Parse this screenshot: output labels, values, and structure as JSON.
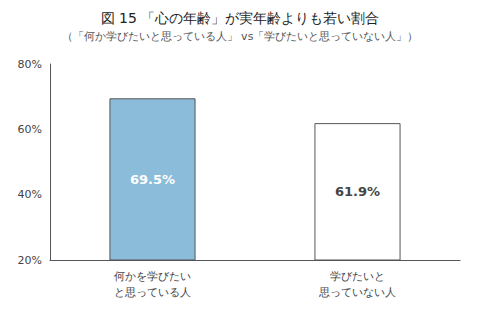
{
  "chart_data": {
    "type": "bar",
    "title": "図 15 「心の年齢」が実年齢よりも若い割合",
    "subtitle": "（「何か学びたいと思っている人」 vs「学びたいと思っていない人」）",
    "categories": [
      "何かを学びたい\nと思っている人",
      "学びたいと\n思っていない人"
    ],
    "values": [
      69.5,
      61.9
    ],
    "value_labels": [
      "69.5%",
      "61.9%"
    ],
    "data_labels": true,
    "colors": [
      "#8BBCDA",
      "#FFFFFF"
    ],
    "ylim": [
      20,
      80
    ],
    "yticks": [
      {
        "value": 20,
        "label": "20%"
      },
      {
        "value": 40,
        "label": "40%"
      },
      {
        "value": 60,
        "label": "60%"
      },
      {
        "value": 80,
        "label": "80%"
      }
    ],
    "grid": false
  }
}
